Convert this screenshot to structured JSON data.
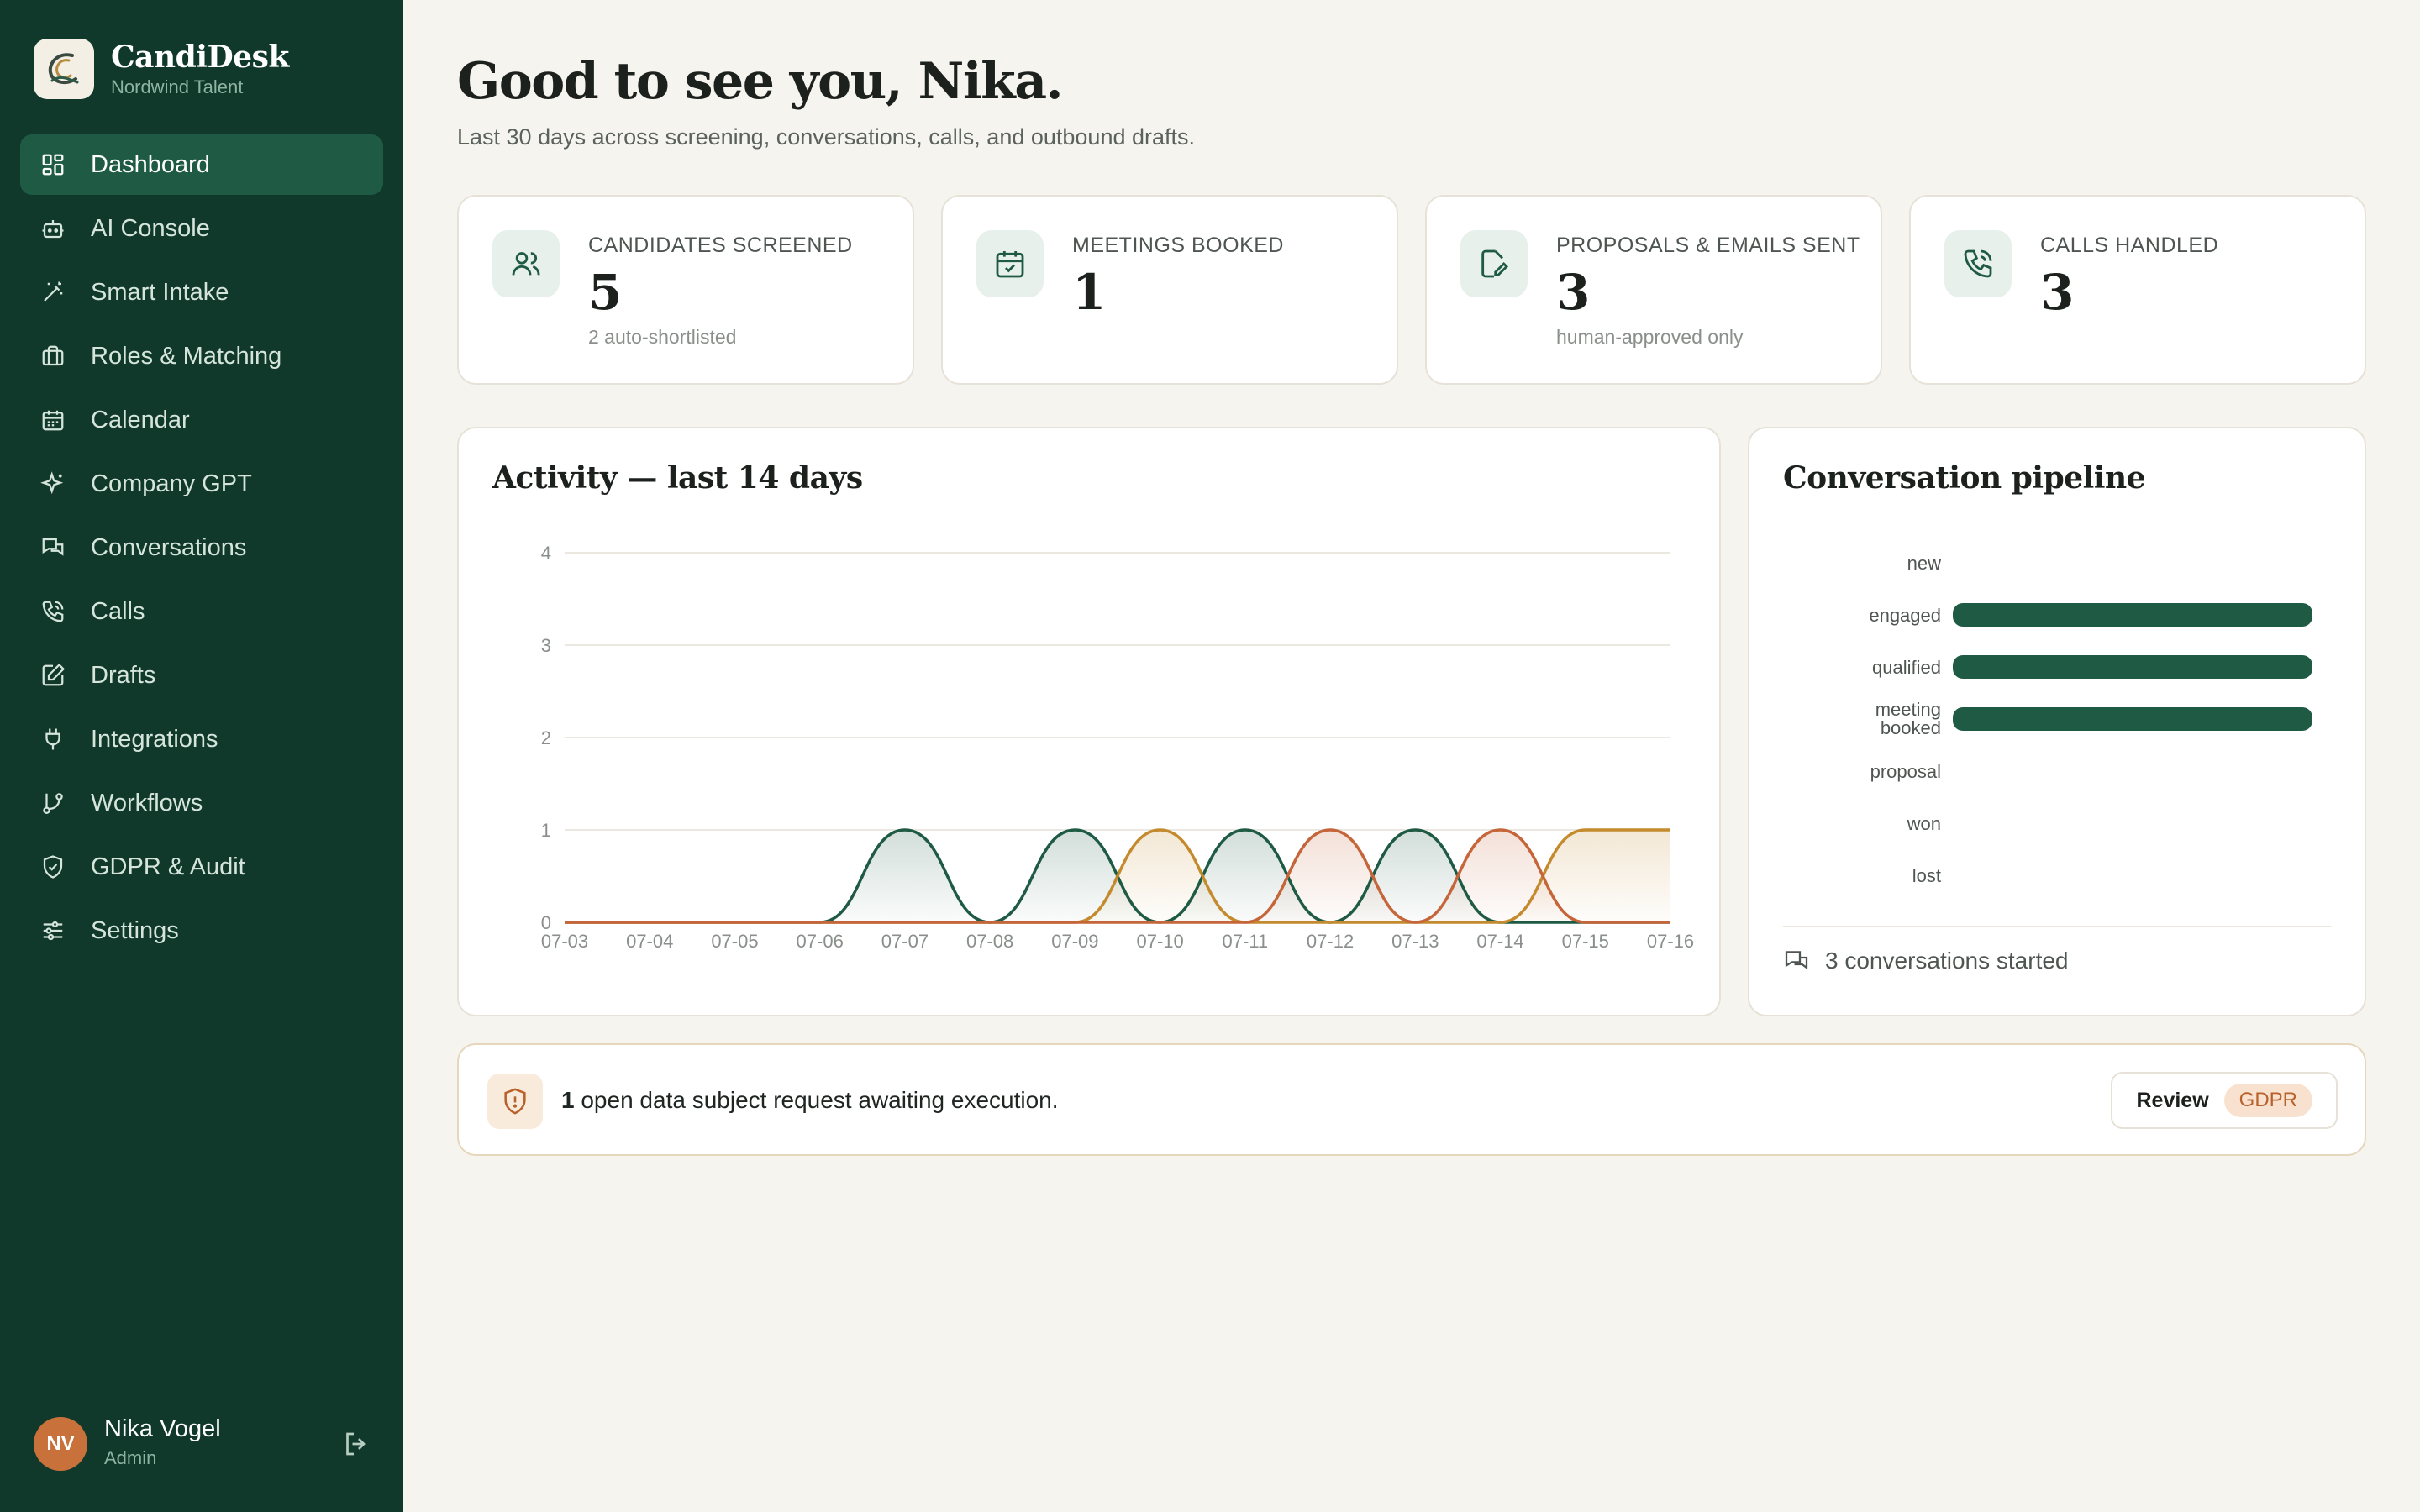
{
  "app": {
    "name": "CandiDesk",
    "org": "Nordwind Talent"
  },
  "sidebar": {
    "items": [
      {
        "label": "Dashboard",
        "icon": "grid-icon",
        "active": true
      },
      {
        "label": "AI Console",
        "icon": "bot-icon"
      },
      {
        "label": "Smart Intake",
        "icon": "wand-icon"
      },
      {
        "label": "Roles & Matching",
        "icon": "briefcase-icon"
      },
      {
        "label": "Calendar",
        "icon": "calendar-icon"
      },
      {
        "label": "Company GPT",
        "icon": "sparkles-icon"
      },
      {
        "label": "Conversations",
        "icon": "chat-icon"
      },
      {
        "label": "Calls",
        "icon": "phone-icon"
      },
      {
        "label": "Drafts",
        "icon": "edit-icon"
      },
      {
        "label": "Integrations",
        "icon": "plug-icon"
      },
      {
        "label": "Workflows",
        "icon": "git-branch-icon"
      },
      {
        "label": "GDPR & Audit",
        "icon": "shield-icon"
      },
      {
        "label": "Settings",
        "icon": "sliders-icon"
      }
    ]
  },
  "user": {
    "initials": "NV",
    "name": "Nika Vogel",
    "role": "Admin"
  },
  "header": {
    "greeting": "Good to see you, Nika.",
    "subtitle": "Last 30 days across screening, conversations, calls, and outbound drafts."
  },
  "stats": [
    {
      "label": "CANDIDATES SCREENED",
      "value": "5",
      "note": "2 auto-shortlisted",
      "icon": "users-icon"
    },
    {
      "label": "MEETINGS BOOKED",
      "value": "1",
      "note": "",
      "icon": "calendar-check-icon"
    },
    {
      "label": "PROPOSALS & EMAILS SENT",
      "value": "3",
      "note": "human-approved only",
      "icon": "edit-icon"
    },
    {
      "label": "CALLS HANDLED",
      "value": "3",
      "note": "",
      "icon": "phone-icon"
    }
  ],
  "activity": {
    "title": "Activity — last 14 days",
    "chart_data": {
      "type": "area",
      "x": [
        "07-03",
        "07-04",
        "07-05",
        "07-06",
        "07-07",
        "07-08",
        "07-09",
        "07-10",
        "07-11",
        "07-12",
        "07-13",
        "07-14",
        "07-15",
        "07-16"
      ],
      "ylim": [
        0,
        4
      ],
      "yticks": [
        0,
        1,
        2,
        3,
        4
      ],
      "grid": true,
      "series": [
        {
          "color": "#1e5a44",
          "values": [
            0,
            0,
            0,
            0,
            1,
            0,
            1,
            0,
            1,
            0,
            1,
            0,
            0,
            0
          ]
        },
        {
          "color": "#c48a2e",
          "values": [
            0,
            0,
            0,
            0,
            0,
            0,
            0,
            1,
            0,
            0,
            0,
            0,
            1,
            1
          ]
        },
        {
          "color": "#c5653a",
          "values": [
            0,
            0,
            0,
            0,
            0,
            0,
            0,
            0,
            0,
            1,
            0,
            1,
            0,
            0
          ]
        }
      ]
    }
  },
  "pipeline": {
    "title": "Conversation pipeline",
    "chart_data": {
      "type": "bar",
      "orientation": "horizontal",
      "categories": [
        "new",
        "engaged",
        "qualified",
        "meeting booked",
        "proposal",
        "won",
        "lost"
      ],
      "values": [
        0,
        1,
        1,
        1,
        0,
        0,
        0
      ],
      "xlim": [
        0,
        1
      ],
      "color": "#1e5a44"
    },
    "footer": "3 conversations started"
  },
  "alert": {
    "count": "1",
    "text": " open data subject request awaiting execution.",
    "review_label": "Review",
    "badge": "GDPR"
  }
}
